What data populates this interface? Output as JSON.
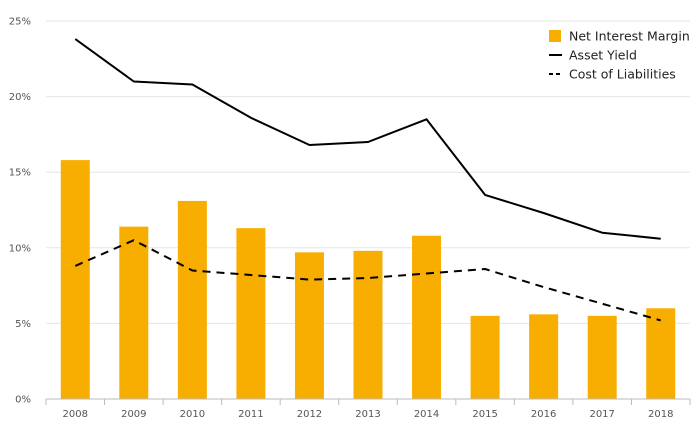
{
  "chart_data": {
    "type": "bar",
    "categories": [
      "2008",
      "2009",
      "2010",
      "2011",
      "2012",
      "2013",
      "2014",
      "2015",
      "2016",
      "2017",
      "2018"
    ],
    "ylim": [
      0,
      25
    ],
    "y_ticks": [
      {
        "value": 0,
        "label": "0%"
      },
      {
        "value": 5,
        "label": "5%"
      },
      {
        "value": 10,
        "label": "10%"
      },
      {
        "value": 15,
        "label": "15%"
      },
      {
        "value": 20,
        "label": "20%"
      },
      {
        "value": 25,
        "label": "25%"
      }
    ],
    "grid": "horizontal",
    "legend_position": "top-right",
    "series": [
      {
        "name": "Net Interest Margin",
        "kind": "bar",
        "color": "#F7AE00",
        "values": [
          15.8,
          11.4,
          13.1,
          11.3,
          9.7,
          9.8,
          10.8,
          5.5,
          5.6,
          5.5,
          6.0
        ]
      },
      {
        "name": "Asset Yield",
        "kind": "line",
        "style": "solid",
        "color": "#000000",
        "values": [
          23.8,
          21.0,
          20.8,
          18.6,
          16.8,
          17.0,
          18.5,
          13.5,
          12.3,
          11.0,
          10.6
        ]
      },
      {
        "name": "Cost of Liabilities",
        "kind": "line",
        "style": "dashed",
        "color": "#000000",
        "values": [
          8.8,
          10.5,
          8.5,
          8.2,
          7.9,
          8.0,
          8.3,
          8.6,
          7.4,
          6.3,
          5.2
        ]
      }
    ],
    "colors": {
      "grid": "#E6E6E6",
      "axis": "#BBBBBB",
      "tick_text": "#555555"
    }
  }
}
